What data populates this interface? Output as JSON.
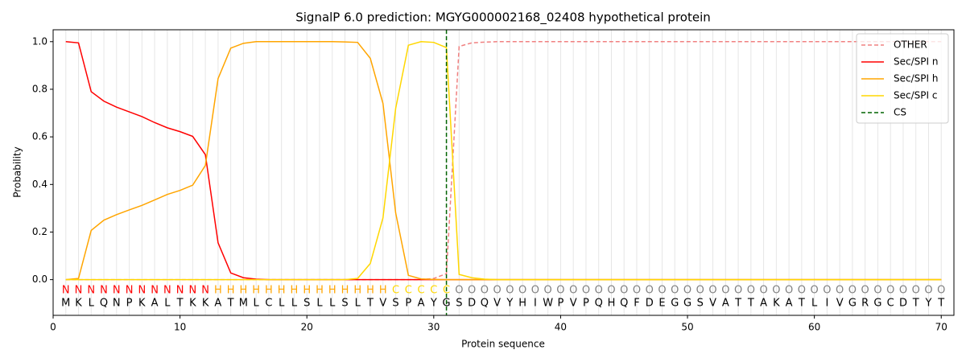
{
  "chart_data": {
    "type": "line",
    "title": "SignalP 6.0 prediction: MGYG000002168_02408 hypothetical protein",
    "xlabel": "Protein sequence",
    "ylabel": "Probability",
    "x": [
      1,
      2,
      3,
      4,
      5,
      6,
      7,
      8,
      9,
      10,
      11,
      12,
      13,
      14,
      15,
      16,
      17,
      18,
      19,
      20,
      21,
      22,
      23,
      24,
      25,
      26,
      27,
      28,
      29,
      30,
      31,
      32,
      33,
      34,
      35,
      36,
      37,
      38,
      39,
      40,
      41,
      42,
      43,
      44,
      45,
      46,
      47,
      48,
      49,
      50,
      51,
      52,
      53,
      54,
      55,
      56,
      57,
      58,
      59,
      60,
      61,
      62,
      63,
      64,
      65,
      66,
      67,
      68,
      69,
      70
    ],
    "xlim": [
      0,
      71
    ],
    "xticks": [
      0,
      10,
      20,
      30,
      40,
      50,
      60,
      70
    ],
    "ylim": [
      -0.15,
      1.05
    ],
    "yticks": [
      {
        "value": 0,
        "label": "0.0"
      },
      {
        "value": 0.2,
        "label": "0.2"
      },
      {
        "value": 0.4,
        "label": "0.4"
      },
      {
        "value": 0.6,
        "label": "0.6"
      },
      {
        "value": 0.8,
        "label": "0.8"
      },
      {
        "value": 1,
        "label": "1.0"
      }
    ],
    "grid": true,
    "legend": "upper right",
    "series": [
      {
        "name": "OTHER",
        "color": "#f08080",
        "dashed": true,
        "values": [
          0,
          0,
          0,
          0,
          0,
          0,
          0,
          0,
          0,
          0,
          0,
          0,
          0,
          0,
          0,
          0,
          0,
          0,
          0,
          0,
          0,
          0,
          0,
          0,
          0,
          0,
          0,
          0,
          0,
          0.005,
          0.025,
          0.98,
          0.995,
          0.998,
          1,
          1,
          1,
          1,
          1,
          1,
          1,
          1,
          1,
          1,
          1,
          1,
          1,
          1,
          1,
          1,
          1,
          1,
          1,
          1,
          1,
          1,
          1,
          1,
          1,
          1,
          1,
          1,
          1,
          1,
          1,
          1,
          1,
          1,
          1,
          1
        ]
      },
      {
        "name": "Sec/SPI n",
        "color": "#ff0000",
        "dashed": false,
        "values": [
          1.0,
          0.995,
          0.79,
          0.75,
          0.725,
          0.705,
          0.685,
          0.66,
          0.638,
          0.622,
          0.602,
          0.525,
          0.155,
          0.028,
          0.008,
          0.002,
          0,
          0,
          0,
          0,
          0,
          0,
          0,
          0,
          0,
          0,
          0,
          0,
          0,
          0,
          0,
          0,
          0,
          0,
          0,
          0,
          0,
          0,
          0,
          0,
          0,
          0,
          0,
          0,
          0,
          0,
          0,
          0,
          0,
          0,
          0,
          0,
          0,
          0,
          0,
          0,
          0,
          0,
          0,
          0,
          0,
          0,
          0,
          0,
          0,
          0,
          0,
          0,
          0,
          0
        ]
      },
      {
        "name": "Sec/SPI h",
        "color": "#ffa500",
        "dashed": false,
        "values": [
          0,
          0.005,
          0.207,
          0.25,
          0.273,
          0.293,
          0.312,
          0.335,
          0.358,
          0.375,
          0.397,
          0.48,
          0.845,
          0.973,
          0.993,
          1,
          1,
          1,
          1,
          1,
          1,
          1,
          0.999,
          0.997,
          0.93,
          0.74,
          0.28,
          0.018,
          0.003,
          0.001,
          0,
          0,
          0,
          0,
          0,
          0,
          0,
          0,
          0,
          0,
          0,
          0,
          0,
          0,
          0,
          0,
          0,
          0,
          0,
          0,
          0,
          0,
          0,
          0,
          0,
          0,
          0,
          0,
          0,
          0,
          0,
          0,
          0,
          0,
          0,
          0,
          0,
          0,
          0,
          0
        ]
      },
      {
        "name": "Sec/SPI c",
        "color": "#ffd700",
        "dashed": false,
        "values": [
          0,
          0,
          0,
          0,
          0,
          0,
          0,
          0,
          0,
          0,
          0,
          0,
          0,
          0,
          0,
          0,
          0,
          0,
          0,
          0,
          0,
          0,
          0,
          0.005,
          0.068,
          0.26,
          0.72,
          0.985,
          1,
          0.997,
          0.975,
          0.022,
          0.008,
          0.002,
          0,
          0,
          0,
          0,
          0,
          0,
          0,
          0,
          0,
          0,
          0,
          0,
          0,
          0,
          0,
          0,
          0,
          0,
          0,
          0,
          0,
          0,
          0,
          0,
          0,
          0,
          0,
          0,
          0,
          0,
          0,
          0,
          0,
          0,
          0,
          0
        ]
      }
    ],
    "vline": {
      "name": "CS",
      "x": 31,
      "color": "#006400"
    },
    "region_label_colors": {
      "N": "#ff0000",
      "H": "#ffa500",
      "C": "#ffd700",
      "O": "#808080"
    },
    "region_labels": [
      "N",
      "N",
      "N",
      "N",
      "N",
      "N",
      "N",
      "N",
      "N",
      "N",
      "N",
      "N",
      "H",
      "H",
      "H",
      "H",
      "H",
      "H",
      "H",
      "H",
      "H",
      "H",
      "H",
      "H",
      "H",
      "H",
      "C",
      "C",
      "C",
      "C",
      "C",
      "O",
      "O",
      "O",
      "O",
      "O",
      "O",
      "O",
      "O",
      "O",
      "O",
      "O",
      "O",
      "O",
      "O",
      "O",
      "O",
      "O",
      "O",
      "O",
      "O",
      "O",
      "O",
      "O",
      "O",
      "O",
      "O",
      "O",
      "O",
      "O",
      "O",
      "O",
      "O",
      "O",
      "O",
      "O",
      "O",
      "O",
      "O",
      "O"
    ],
    "sequence": [
      "M",
      "K",
      "L",
      "Q",
      "N",
      "P",
      "K",
      "A",
      "L",
      "T",
      "K",
      "K",
      "A",
      "T",
      "M",
      "L",
      "C",
      "L",
      "L",
      "S",
      "L",
      "L",
      "S",
      "L",
      "T",
      "V",
      "S",
      "P",
      "A",
      "Y",
      "G",
      "S",
      "D",
      "Q",
      "V",
      "Y",
      "H",
      "I",
      "W",
      "P",
      "V",
      "P",
      "Q",
      "H",
      "Q",
      "F",
      "D",
      "E",
      "G",
      "G",
      "S",
      "V",
      "A",
      "T",
      "T",
      "A",
      "K",
      "A",
      "T",
      "L",
      "I",
      "V",
      "G",
      "R",
      "G",
      "C",
      "D",
      "T",
      "Y",
      "T"
    ]
  }
}
